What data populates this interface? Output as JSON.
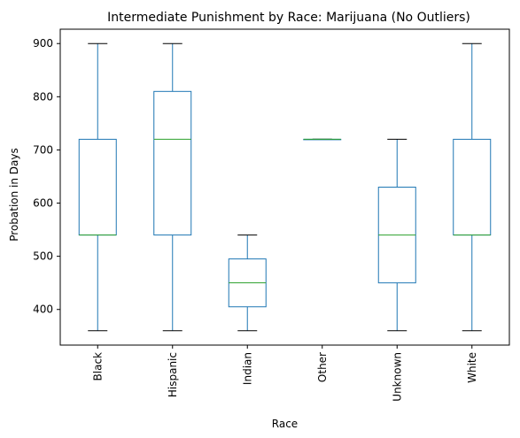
{
  "chart_data": {
    "type": "box",
    "title": "Intermediate Punishment by Race: Marijuana (No Outliers)",
    "xlabel": "Race",
    "ylabel": "Probation in Days",
    "categories": [
      "Black",
      "Hispanic",
      "Indian",
      "Other",
      "Unknown",
      "White"
    ],
    "boxes": [
      {
        "category": "Black",
        "whisker_low": 360,
        "q1": 540,
        "median": 540,
        "q3": 720,
        "whisker_high": 900
      },
      {
        "category": "Hispanic",
        "whisker_low": 360,
        "q1": 540,
        "median": 720,
        "q3": 810,
        "whisker_high": 900
      },
      {
        "category": "Indian",
        "whisker_low": 360,
        "q1": 405,
        "median": 450,
        "q3": 495,
        "whisker_high": 540
      },
      {
        "category": "Other",
        "whisker_low": 720,
        "q1": 720,
        "median": 720,
        "q3": 720,
        "whisker_high": 720
      },
      {
        "category": "Unknown",
        "whisker_low": 360,
        "q1": 450,
        "median": 540,
        "q3": 630,
        "whisker_high": 720
      },
      {
        "category": "White",
        "whisker_low": 360,
        "q1": 540,
        "median": 540,
        "q3": 720,
        "whisker_high": 900
      }
    ],
    "y_ticks": [
      400,
      500,
      600,
      700,
      800,
      900
    ],
    "ylim": [
      333,
      927
    ],
    "grid": false,
    "legend": "none",
    "colors": {
      "box": "#1f77b4",
      "median": "#2ca02c",
      "axis": "#000000"
    }
  }
}
